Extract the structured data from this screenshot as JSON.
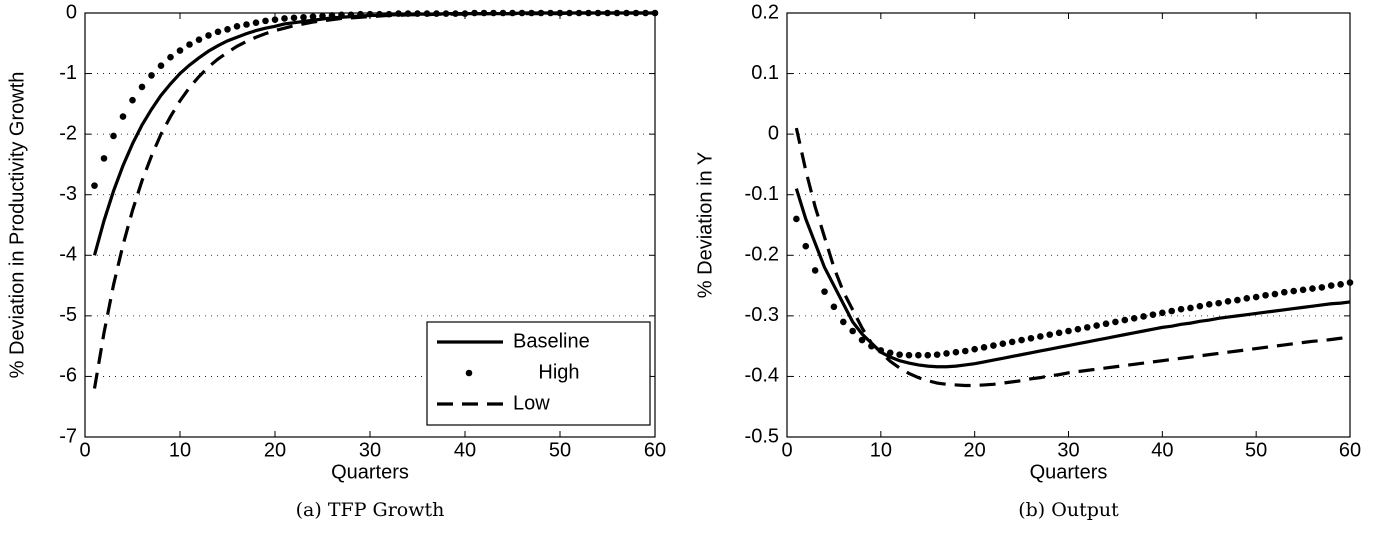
{
  "chart_data": [
    {
      "type": "line",
      "ylabel": "% Deviation in Productivity Growth",
      "xlabel": "Quarters",
      "caption": "(a) TFP Growth",
      "x": [
        1,
        2,
        3,
        4,
        5,
        6,
        7,
        8,
        9,
        10,
        11,
        12,
        13,
        14,
        15,
        16,
        17,
        18,
        19,
        20,
        21,
        22,
        23,
        24,
        25,
        26,
        27,
        28,
        29,
        30,
        31,
        32,
        33,
        34,
        35,
        36,
        37,
        38,
        39,
        40,
        41,
        42,
        43,
        44,
        45,
        46,
        47,
        48,
        49,
        50,
        51,
        52,
        53,
        54,
        55,
        56,
        57,
        58,
        59,
        60
      ],
      "xlim": [
        0,
        60
      ],
      "xticks": [
        0,
        10,
        20,
        30,
        40,
        50,
        60
      ],
      "ylim": [
        -7,
        0
      ],
      "yticks": [
        0,
        -1,
        -2,
        -3,
        -4,
        -5,
        -6,
        -7
      ],
      "grid": "y",
      "legend": "lower right",
      "series": [
        {
          "name": "Baseline",
          "color": "#000000",
          "style": "solid",
          "values": [
            -4,
            -3.43,
            -2.94,
            -2.52,
            -2.16,
            -1.85,
            -1.59,
            -1.36,
            -1.17,
            -1.0,
            -0.86,
            -0.74,
            -0.63,
            -0.54,
            -0.46,
            -0.4,
            -0.34,
            -0.29,
            -0.25,
            -0.22,
            -0.18,
            -0.16,
            -0.14,
            -0.12,
            -0.1,
            -0.08,
            -0.07,
            -0.06,
            -0.05,
            -0.04,
            -0.04,
            -0.03,
            -0.03,
            -0.02,
            -0.02,
            -0.02,
            -0.02,
            -0.01,
            -0.01,
            -0.01,
            -0.01,
            -0.01,
            -0.01,
            -0.01,
            -0.01,
            0,
            0,
            0,
            0,
            0,
            0,
            0,
            0,
            0,
            0,
            0,
            0,
            0,
            0,
            0
          ]
        },
        {
          "name": "High",
          "color": "#000000",
          "style": "dots",
          "values": [
            -2.85,
            -2.4,
            -2.03,
            -1.71,
            -1.44,
            -1.22,
            -1.03,
            -0.87,
            -0.73,
            -0.62,
            -0.52,
            -0.44,
            -0.37,
            -0.31,
            -0.27,
            -0.22,
            -0.19,
            -0.16,
            -0.13,
            -0.11,
            -0.09,
            -0.08,
            -0.07,
            -0.06,
            -0.05,
            -0.04,
            -0.03,
            -0.03,
            -0.02,
            -0.02,
            -0.02,
            -0.02,
            -0.01,
            -0.01,
            -0.01,
            -0.01,
            -0.01,
            -0.01,
            -0.01,
            -0.01,
            0,
            0,
            0,
            0,
            0,
            0,
            0,
            0,
            0,
            0,
            0,
            0,
            0,
            0,
            0,
            0,
            0,
            0,
            0,
            0
          ]
        },
        {
          "name": "Low",
          "color": "#000000",
          "style": "dashed",
          "values": [
            -6.2,
            -5.28,
            -4.49,
            -3.83,
            -3.26,
            -2.77,
            -2.36,
            -2.0,
            -1.71,
            -1.45,
            -1.23,
            -1.05,
            -0.89,
            -0.76,
            -0.65,
            -0.55,
            -0.47,
            -0.4,
            -0.34,
            -0.29,
            -0.25,
            -0.21,
            -0.18,
            -0.15,
            -0.13,
            -0.11,
            -0.09,
            -0.08,
            -0.07,
            -0.06,
            -0.05,
            -0.04,
            -0.04,
            -0.03,
            -0.03,
            -0.03,
            -0.02,
            -0.02,
            -0.02,
            -0.02,
            -0.01,
            -0.01,
            -0.01,
            -0.01,
            -0.01,
            -0.01,
            -0.01,
            -0.01,
            -0.01,
            -0.01,
            0,
            0,
            0,
            0,
            0,
            0,
            0,
            0,
            0,
            0
          ]
        }
      ]
    },
    {
      "type": "line",
      "ylabel": "% Deviation in Y",
      "xlabel": "Quarters",
      "caption": "(b) Output",
      "x": [
        1,
        2,
        3,
        4,
        5,
        6,
        7,
        8,
        9,
        10,
        11,
        12,
        13,
        14,
        15,
        16,
        17,
        18,
        19,
        20,
        21,
        22,
        23,
        24,
        25,
        26,
        27,
        28,
        29,
        30,
        31,
        32,
        33,
        34,
        35,
        36,
        37,
        38,
        39,
        40,
        41,
        42,
        43,
        44,
        45,
        46,
        47,
        48,
        49,
        50,
        51,
        52,
        53,
        54,
        55,
        56,
        57,
        58,
        59,
        60
      ],
      "xlim": [
        0,
        60
      ],
      "xticks": [
        0,
        10,
        20,
        30,
        40,
        50,
        60
      ],
      "ylim": [
        -0.5,
        0.2
      ],
      "yticks": [
        0.2,
        0.1,
        0,
        -0.1,
        -0.2,
        -0.3,
        -0.4,
        -0.5
      ],
      "grid": "y",
      "series": [
        {
          "name": "Baseline",
          "color": "#000000",
          "style": "solid",
          "values": [
            -0.09,
            -0.14,
            -0.18,
            -0.22,
            -0.25,
            -0.28,
            -0.31,
            -0.33,
            -0.345,
            -0.36,
            -0.368,
            -0.374,
            -0.378,
            -0.381,
            -0.383,
            -0.384,
            -0.384,
            -0.383,
            -0.381,
            -0.379,
            -0.376,
            -0.373,
            -0.37,
            -0.367,
            -0.364,
            -0.361,
            -0.358,
            -0.355,
            -0.352,
            -0.349,
            -0.346,
            -0.343,
            -0.34,
            -0.337,
            -0.334,
            -0.331,
            -0.328,
            -0.325,
            -0.322,
            -0.319,
            -0.317,
            -0.314,
            -0.312,
            -0.309,
            -0.307,
            -0.304,
            -0.302,
            -0.3,
            -0.298,
            -0.296,
            -0.294,
            -0.292,
            -0.29,
            -0.288,
            -0.286,
            -0.284,
            -0.282,
            -0.28,
            -0.279,
            -0.277
          ]
        },
        {
          "name": "High",
          "color": "#000000",
          "style": "dots",
          "values": [
            -0.14,
            -0.185,
            -0.225,
            -0.26,
            -0.285,
            -0.31,
            -0.325,
            -0.34,
            -0.35,
            -0.357,
            -0.361,
            -0.364,
            -0.365,
            -0.365,
            -0.365,
            -0.364,
            -0.362,
            -0.36,
            -0.358,
            -0.355,
            -0.352,
            -0.349,
            -0.346,
            -0.343,
            -0.34,
            -0.337,
            -0.334,
            -0.331,
            -0.328,
            -0.325,
            -0.322,
            -0.319,
            -0.316,
            -0.313,
            -0.31,
            -0.307,
            -0.304,
            -0.301,
            -0.298,
            -0.295,
            -0.292,
            -0.289,
            -0.287,
            -0.284,
            -0.281,
            -0.279,
            -0.276,
            -0.274,
            -0.271,
            -0.269,
            -0.266,
            -0.264,
            -0.261,
            -0.259,
            -0.257,
            -0.255,
            -0.253,
            -0.25,
            -0.248,
            -0.245
          ]
        },
        {
          "name": "Low",
          "color": "#000000",
          "style": "dashed",
          "values": [
            0.01,
            -0.06,
            -0.12,
            -0.17,
            -0.22,
            -0.26,
            -0.29,
            -0.32,
            -0.345,
            -0.36,
            -0.375,
            -0.386,
            -0.395,
            -0.402,
            -0.407,
            -0.411,
            -0.413,
            -0.414,
            -0.415,
            -0.415,
            -0.414,
            -0.413,
            -0.411,
            -0.409,
            -0.407,
            -0.404,
            -0.402,
            -0.399,
            -0.397,
            -0.394,
            -0.392,
            -0.39,
            -0.388,
            -0.386,
            -0.384,
            -0.382,
            -0.38,
            -0.378,
            -0.376,
            -0.374,
            -0.372,
            -0.37,
            -0.368,
            -0.366,
            -0.364,
            -0.362,
            -0.36,
            -0.358,
            -0.356,
            -0.354,
            -0.352,
            -0.35,
            -0.348,
            -0.346,
            -0.344,
            -0.342,
            -0.341,
            -0.339,
            -0.337,
            -0.335
          ]
        }
      ]
    }
  ]
}
